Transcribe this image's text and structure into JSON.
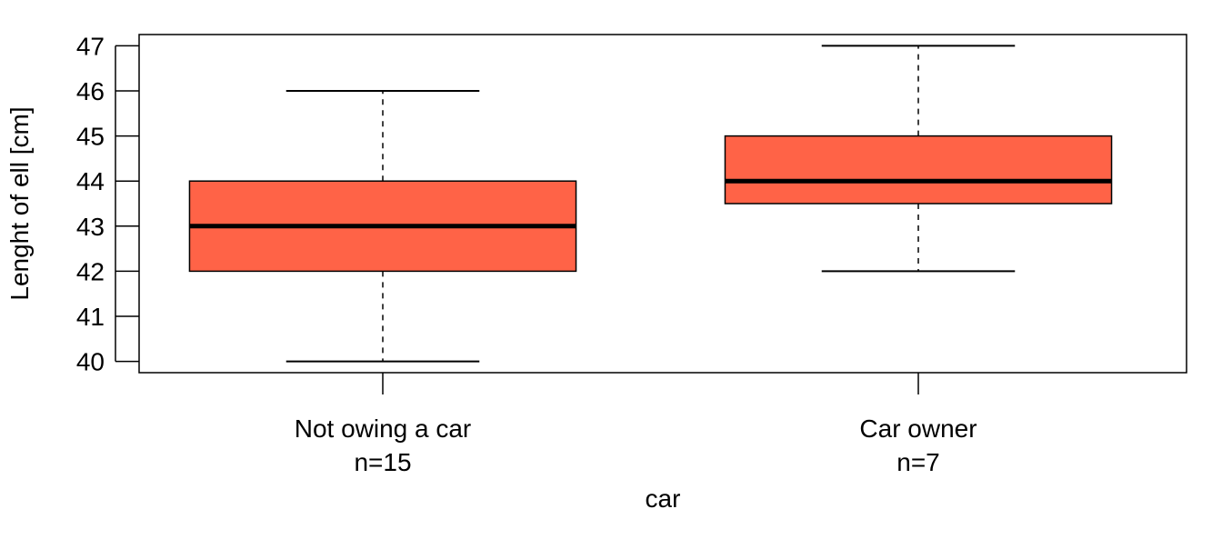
{
  "chart_data": {
    "type": "boxplot",
    "xlabel": "car",
    "ylabel": "Lenght of ell [cm]",
    "yticks": [
      40,
      41,
      42,
      43,
      44,
      45,
      46,
      47
    ],
    "ylim": [
      39.75,
      47.25
    ],
    "grid": false,
    "legend": "none",
    "colors": {
      "box_fill": "#FF6347",
      "stroke": "#000000",
      "background": "#ffffff"
    },
    "categories": [
      {
        "label": "Not owing a car",
        "n_label": "n=15",
        "min": 40,
        "q1": 42,
        "median": 43,
        "q3": 44,
        "max": 46
      },
      {
        "label": "Car owner",
        "n_label": "n=7",
        "min": 42,
        "q1": 43.5,
        "median": 44,
        "q3": 45,
        "max": 47
      }
    ]
  }
}
